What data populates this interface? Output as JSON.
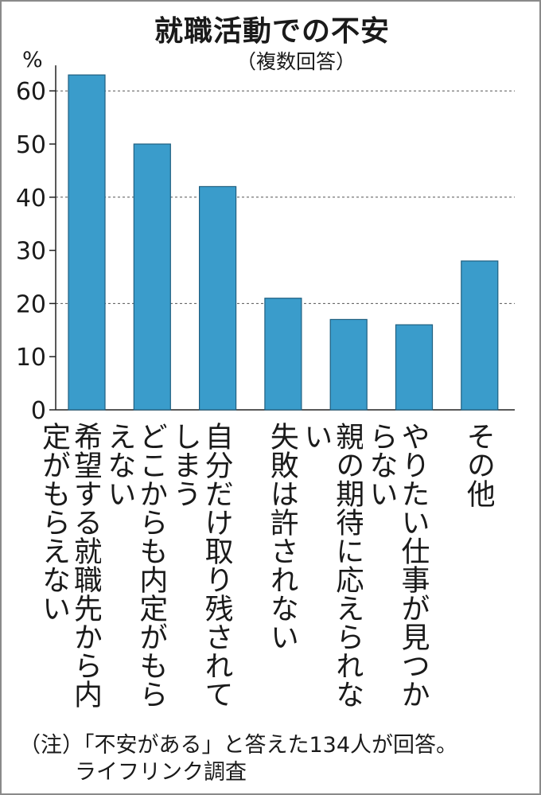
{
  "chart_data": {
    "type": "bar",
    "title": "就職活動での不安",
    "subtitle": "（複数回答）",
    "ylabel": "%",
    "ylim": [
      0,
      63
    ],
    "yticks": [
      0,
      10,
      20,
      30,
      40,
      50,
      60
    ],
    "grid": "dashed at 20, 40, 60",
    "categories": [
      "希望する就職先から内定がもらえない",
      "どこからも内定がもらえない",
      "自分だけ取り残されてしまう",
      "失敗は許されない",
      "親の期待に応えられない",
      "やりたい仕事が見つからない",
      "その他"
    ],
    "values": [
      63,
      50,
      42,
      21,
      17,
      16,
      28
    ],
    "bar_color": "#3a9ccb"
  },
  "note": {
    "line1": "（注）「不安がある」と答えた134人が回答。",
    "line2": "ライフリンク調査"
  }
}
